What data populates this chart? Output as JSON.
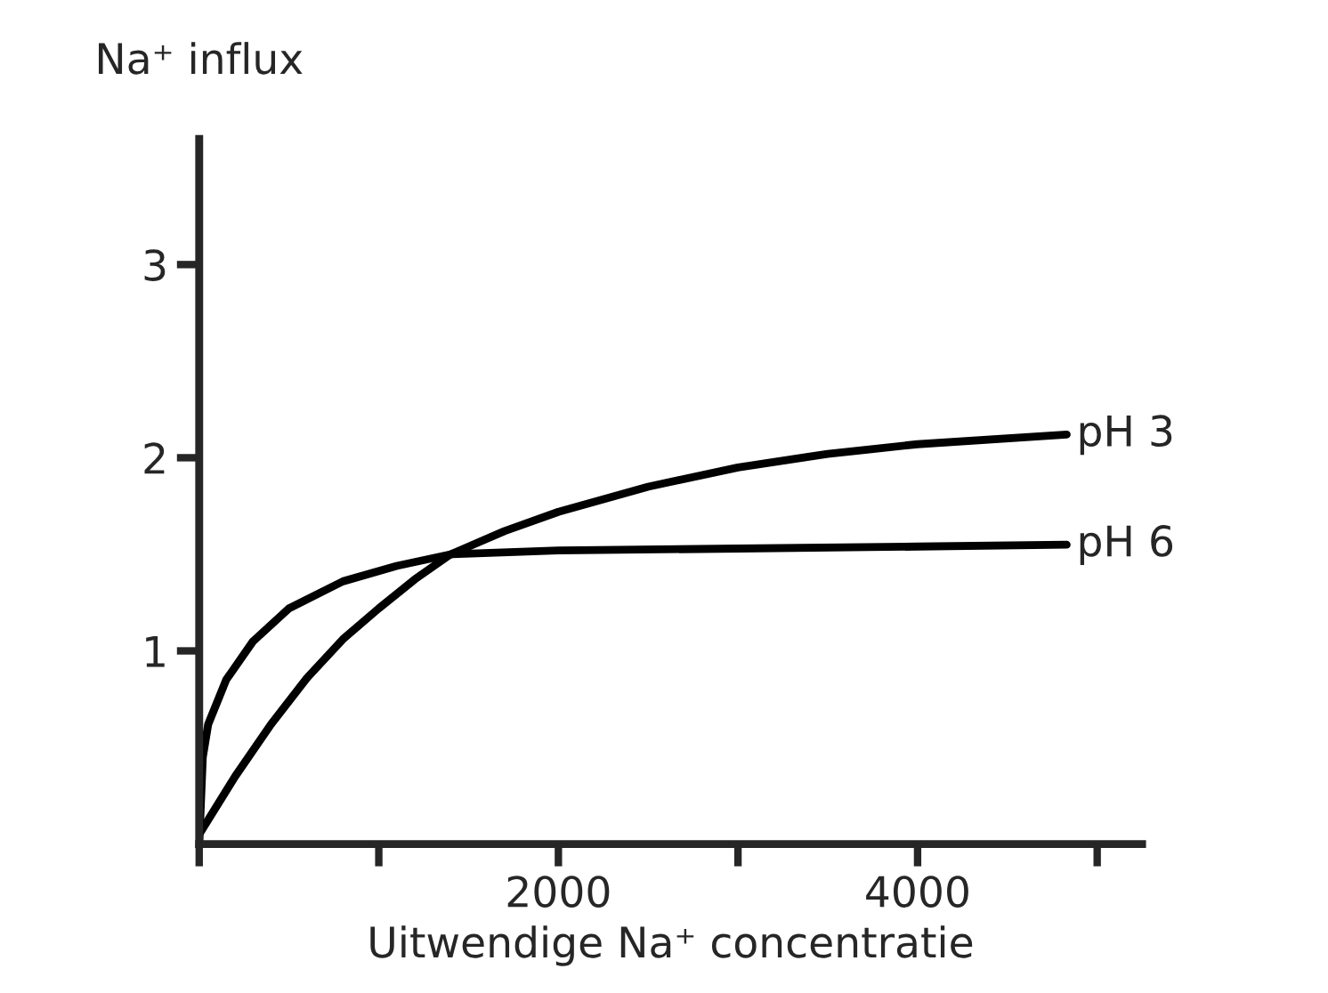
{
  "chart_data": {
    "type": "line",
    "xlabel": "Uitwendige Na⁺ concentratie",
    "ylabel": "Na⁺ influx",
    "xlim": [
      0,
      5250
    ],
    "ylim": [
      0,
      3.65
    ],
    "xticks": [
      {
        "value": 0,
        "label": null
      },
      {
        "value": 1000,
        "label": null
      },
      2000,
      {
        "value": 3000,
        "label": null
      },
      4000,
      {
        "value": 5000,
        "label": null
      }
    ],
    "yticks": [
      1,
      2,
      3
    ],
    "grid": false,
    "legend": false,
    "marker": "none",
    "line_style": "solid",
    "series": [
      {
        "name": "pH 3",
        "color": "#000000",
        "x": [
          0,
          200,
          400,
          600,
          800,
          1000,
          1200,
          1400,
          1700,
          2000,
          2500,
          3000,
          3500,
          4000,
          4830
        ],
        "values": [
          0.05,
          0.35,
          0.62,
          0.86,
          1.06,
          1.22,
          1.37,
          1.5,
          1.62,
          1.72,
          1.85,
          1.95,
          2.02,
          2.07,
          2.12
        ]
      },
      {
        "name": "pH 6",
        "color": "#000000",
        "x": [
          0,
          20,
          50,
          150,
          300,
          500,
          800,
          1100,
          1400,
          2000,
          3000,
          4000,
          4830
        ],
        "values": [
          0,
          0.45,
          0.62,
          0.85,
          1.05,
          1.22,
          1.36,
          1.44,
          1.5,
          1.52,
          1.53,
          1.54,
          1.55
        ]
      }
    ]
  }
}
